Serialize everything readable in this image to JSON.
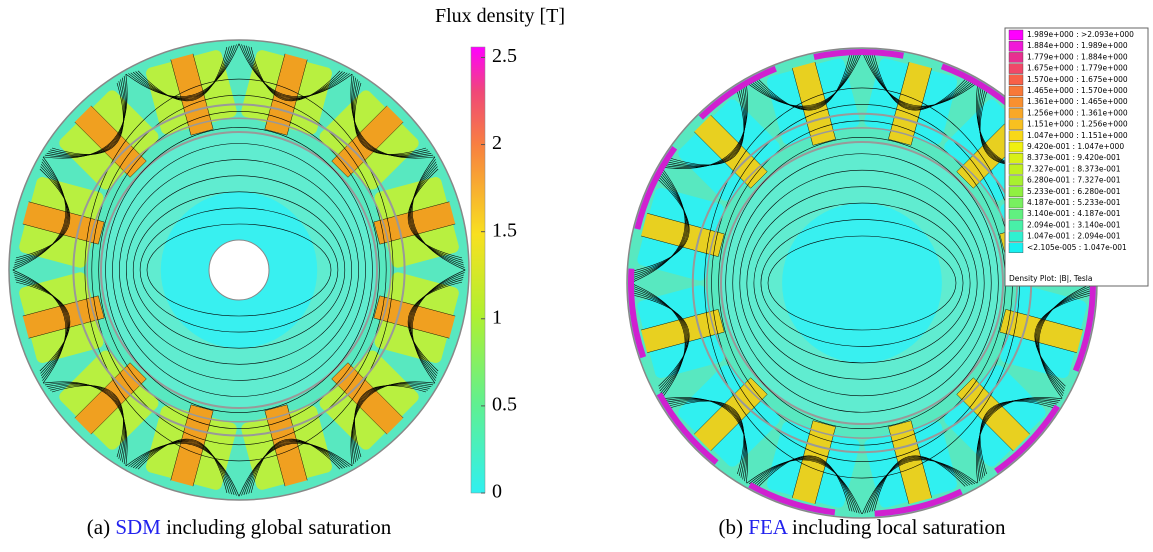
{
  "figure_a": {
    "colorbar": {
      "title": "Flux density [T]",
      "lim": [
        0,
        2.56
      ],
      "ticks": [
        0,
        0.5,
        1,
        1.5,
        2,
        2.5
      ]
    },
    "caption": {
      "label": "(a)",
      "link": "SDM",
      "text": "including global saturation"
    }
  },
  "figure_b": {
    "legend": {
      "entries": [
        {
          "label": "1.989e+000 : >2.093e+000",
          "color": "#ff00ff"
        },
        {
          "label": "1.884e+000 : 1.989e+000",
          "color": "#f018d8"
        },
        {
          "label": "1.779e+000 : 1.884e+000",
          "color": "#e83090"
        },
        {
          "label": "1.675e+000 : 1.779e+000",
          "color": "#f04868"
        },
        {
          "label": "1.570e+000 : 1.675e+000",
          "color": "#f86048"
        },
        {
          "label": "1.465e+000 : 1.570e+000",
          "color": "#f87838"
        },
        {
          "label": "1.361e+000 : 1.465e+000",
          "color": "#f89030"
        },
        {
          "label": "1.256e+000 : 1.361e+000",
          "color": "#f8a828"
        },
        {
          "label": "1.151e+000 : 1.256e+000",
          "color": "#f8c020"
        },
        {
          "label": "1.047e+000 : 1.151e+000",
          "color": "#f8d818"
        },
        {
          "label": "9.420e-001 : 1.047e+000",
          "color": "#f0f010"
        },
        {
          "label": "8.373e-001 : 9.420e-001",
          "color": "#d8f018"
        },
        {
          "label": "7.327e-001 : 8.373e-001",
          "color": "#c0f020"
        },
        {
          "label": "6.280e-001 : 7.327e-001",
          "color": "#a8f030"
        },
        {
          "label": "5.233e-001 : 6.280e-001",
          "color": "#90f040"
        },
        {
          "label": "4.187e-001 : 5.233e-001",
          "color": "#78f060"
        },
        {
          "label": "3.140e-001 : 4.187e-001",
          "color": "#60f080"
        },
        {
          "label": "2.094e-001 : 3.140e-001",
          "color": "#48f0a8"
        },
        {
          "label": "1.047e-001 : 2.094e-001",
          "color": "#30f0d0"
        },
        {
          "label": "<2.105e-005 : 1.047e-001",
          "color": "#18f0f0"
        }
      ],
      "footer": "Density Plot: |B|, Tesla"
    },
    "caption": {
      "label": "(b)",
      "link": "FEA",
      "text": "including local saturation"
    }
  }
}
